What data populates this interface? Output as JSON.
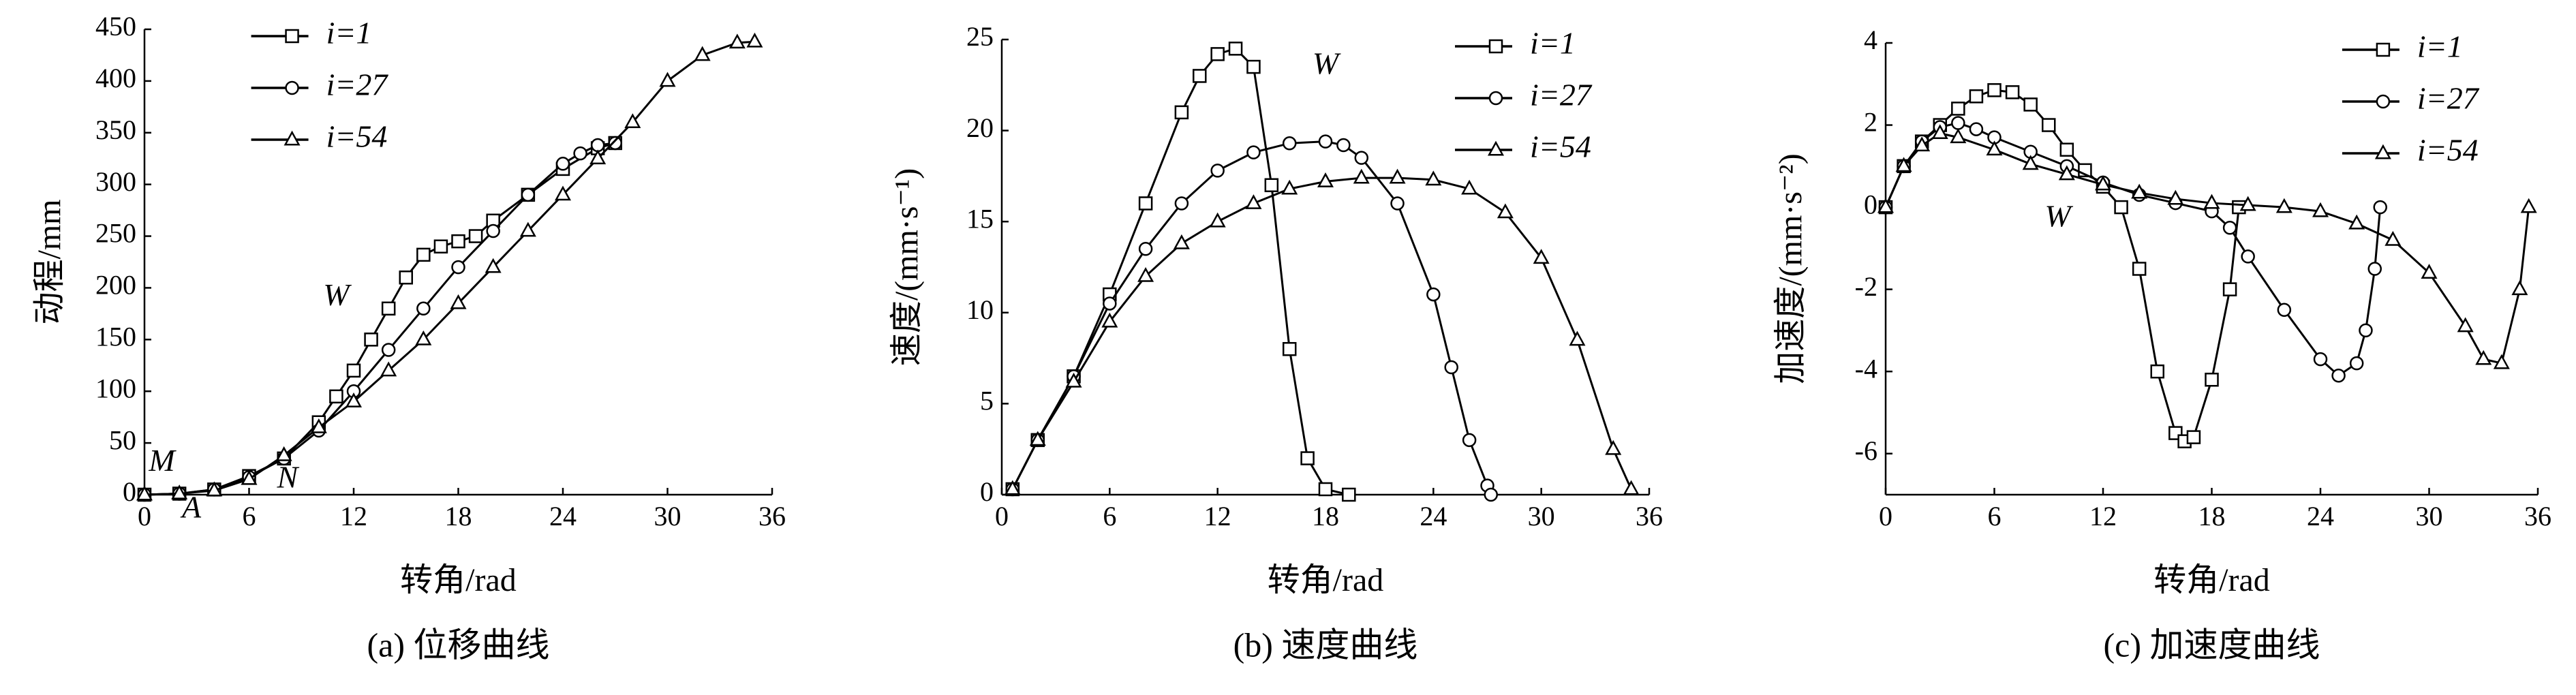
{
  "chart_data": [
    {
      "type": "line",
      "caption": "(a) 位移曲线",
      "xlabel": "转角/rad",
      "ylabel": "动程/mm",
      "xlim": [
        0,
        36
      ],
      "ylim": [
        0,
        450
      ],
      "xticks": [
        0,
        6,
        12,
        18,
        24,
        30,
        36
      ],
      "yticks": [
        0,
        50,
        100,
        150,
        200,
        250,
        300,
        350,
        400,
        450
      ],
      "legend": "upper left",
      "annotations": [
        {
          "text": "W",
          "x": 11,
          "y": 190
        },
        {
          "text": "M",
          "x": 1,
          "y": 30
        },
        {
          "text": "A",
          "x": 2.7,
          "y": -15
        },
        {
          "text": "N",
          "x": 8.2,
          "y": 14
        }
      ],
      "series": [
        {
          "name": "i=1",
          "color": "#000000",
          "marker": "square",
          "x": [
            0,
            2,
            4,
            6,
            8,
            10,
            11,
            12,
            13,
            14,
            15,
            16,
            17,
            18,
            19,
            20,
            22,
            24,
            26,
            27
          ],
          "values": [
            0,
            1,
            5,
            18,
            35,
            70,
            95,
            120,
            150,
            180,
            210,
            232,
            240,
            245,
            250,
            265,
            290,
            315,
            335,
            340
          ]
        },
        {
          "name": "i=27",
          "color": "#000000",
          "marker": "circle",
          "x": [
            0,
            2,
            4,
            6,
            8,
            10,
            12,
            14,
            16,
            18,
            20,
            22,
            24,
            25,
            26,
            27
          ],
          "values": [
            0,
            1,
            5,
            17,
            35,
            62,
            100,
            140,
            180,
            220,
            255,
            290,
            320,
            330,
            338,
            340
          ]
        },
        {
          "name": "i=54",
          "color": "#000000",
          "marker": "triangle",
          "x": [
            0,
            2,
            4,
            6,
            8,
            10,
            12,
            14,
            16,
            18,
            20,
            22,
            24,
            26,
            28,
            30,
            32,
            34,
            35
          ],
          "values": [
            0,
            1,
            4,
            15,
            38,
            65,
            90,
            120,
            150,
            185,
            220,
            255,
            290,
            325,
            360,
            400,
            425,
            437,
            438
          ]
        }
      ]
    },
    {
      "type": "line",
      "caption": "(b) 速度曲线",
      "xlabel": "转角/rad",
      "ylabel": "速度/(mm·s⁻¹)",
      "xlim": [
        0,
        36
      ],
      "ylim": [
        0,
        25
      ],
      "xticks": [
        0,
        6,
        12,
        18,
        24,
        30,
        36
      ],
      "yticks": [
        0,
        5,
        10,
        15,
        20,
        25
      ],
      "legend": "upper right",
      "annotations": [
        {
          "text": "W",
          "x": 18,
          "y": 23.5
        }
      ],
      "series": [
        {
          "name": "i=1",
          "color": "#000000",
          "marker": "square",
          "x": [
            0.6,
            2,
            4,
            6,
            8,
            10,
            11,
            12,
            13,
            14,
            15,
            16,
            17,
            18,
            19.3
          ],
          "values": [
            0.3,
            3,
            6.5,
            11,
            16,
            21,
            23,
            24.2,
            24.5,
            23.5,
            17,
            8,
            2,
            0.3,
            0
          ]
        },
        {
          "name": "i=27",
          "color": "#000000",
          "marker": "circle",
          "x": [
            0.6,
            2,
            4,
            6,
            8,
            10,
            12,
            14,
            16,
            18,
            19,
            20,
            22,
            24,
            25,
            26,
            27,
            27.2
          ],
          "values": [
            0.3,
            3,
            6.5,
            10.5,
            13.5,
            16,
            17.8,
            18.8,
            19.3,
            19.4,
            19.2,
            18.5,
            16,
            11,
            7,
            3,
            0.5,
            0
          ]
        },
        {
          "name": "i=54",
          "color": "#000000",
          "marker": "triangle",
          "x": [
            0.6,
            2,
            4,
            6,
            8,
            10,
            12,
            14,
            16,
            18,
            20,
            22,
            24,
            26,
            28,
            30,
            32,
            34,
            35
          ],
          "values": [
            0.3,
            3,
            6.2,
            9.5,
            12,
            13.8,
            15,
            16,
            16.8,
            17.2,
            17.4,
            17.4,
            17.3,
            16.8,
            15.5,
            13,
            8.5,
            2.5,
            0.3
          ]
        }
      ]
    },
    {
      "type": "line",
      "caption": "(c) 加速度曲线",
      "xlabel": "转角/rad",
      "ylabel": "加速度/(mm·s⁻²)",
      "xlim": [
        0,
        36
      ],
      "ylim": [
        -7,
        4
      ],
      "xticks": [
        0,
        6,
        12,
        18,
        24,
        30,
        36
      ],
      "yticks": [
        -6,
        -4,
        -2,
        0,
        2,
        4
      ],
      "legend": "upper right",
      "annotations": [
        {
          "text": "W",
          "x": 9.5,
          "y": -0.3
        }
      ],
      "series": [
        {
          "name": "i=1",
          "color": "#000000",
          "marker": "square",
          "x": [
            0,
            1,
            2,
            3,
            4,
            5,
            6,
            7,
            8,
            9,
            10,
            11,
            12,
            13,
            14,
            15,
            16,
            16.5,
            17,
            18,
            19,
            19.5
          ],
          "values": [
            0,
            1,
            1.6,
            2,
            2.4,
            2.7,
            2.85,
            2.8,
            2.5,
            2,
            1.4,
            0.9,
            0.5,
            0,
            -1.5,
            -4,
            -5.5,
            -5.7,
            -5.6,
            -4.2,
            -2,
            0
          ]
        },
        {
          "name": "i=27",
          "color": "#000000",
          "marker": "circle",
          "x": [
            0,
            1,
            2,
            3,
            4,
            5,
            6,
            8,
            10,
            12,
            14,
            16,
            18,
            19,
            20,
            22,
            24,
            25,
            26,
            26.5,
            27,
            27.3
          ],
          "values": [
            0,
            1,
            1.6,
            1.95,
            2.05,
            1.9,
            1.7,
            1.35,
            1,
            0.6,
            0.3,
            0.1,
            -0.1,
            -0.5,
            -1.2,
            -2.5,
            -3.7,
            -4.1,
            -3.8,
            -3,
            -1.5,
            0
          ]
        },
        {
          "name": "i=54",
          "color": "#000000",
          "marker": "triangle",
          "x": [
            0,
            1,
            2,
            3,
            4,
            6,
            8,
            10,
            12,
            14,
            16,
            18,
            20,
            22,
            24,
            26,
            28,
            30,
            32,
            33,
            34,
            35,
            35.5
          ],
          "values": [
            0,
            1,
            1.5,
            1.8,
            1.7,
            1.4,
            1.05,
            0.8,
            0.55,
            0.35,
            0.2,
            0.1,
            0.05,
            0,
            -0.1,
            -0.4,
            -0.8,
            -1.6,
            -2.9,
            -3.7,
            -3.8,
            -2,
            0
          ]
        }
      ]
    }
  ]
}
